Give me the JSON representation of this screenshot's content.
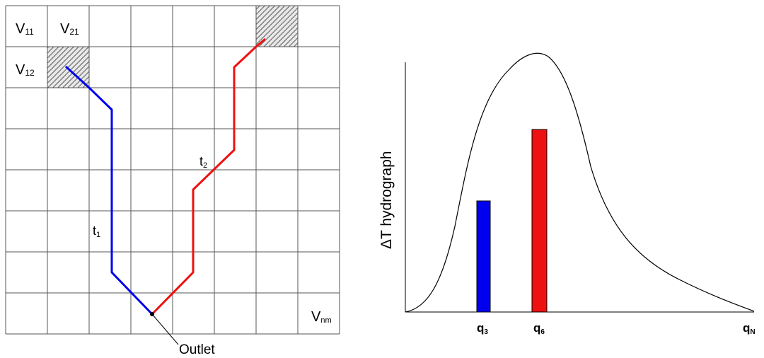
{
  "grid": {
    "cell_labels": {
      "v11": {
        "main": "V",
        "sub": "11"
      },
      "v21": {
        "main": "V",
        "sub": "21"
      },
      "v12": {
        "main": "V",
        "sub": "12"
      },
      "vnm": {
        "main": "V",
        "sub": "nm"
      }
    },
    "path_labels": {
      "t1": {
        "main": "t",
        "sub": "1"
      },
      "t2": {
        "main": "t",
        "sub": "2"
      }
    },
    "outlet_label": "Outlet",
    "colors": {
      "path1": "#0000ee",
      "path2": "#ee1111",
      "grid": "#555555"
    }
  },
  "hydrograph": {
    "ylabel": "ΔT  hydrograph",
    "x_labels": {
      "q3": {
        "main": "q",
        "sub": "3"
      },
      "q6": {
        "main": "q",
        "sub": "6"
      },
      "qN": {
        "main": "q",
        "sub": "N"
      }
    },
    "bars": [
      {
        "name": "q3",
        "color": "#0000ee"
      },
      {
        "name": "q6",
        "color": "#ee1111"
      }
    ]
  }
}
